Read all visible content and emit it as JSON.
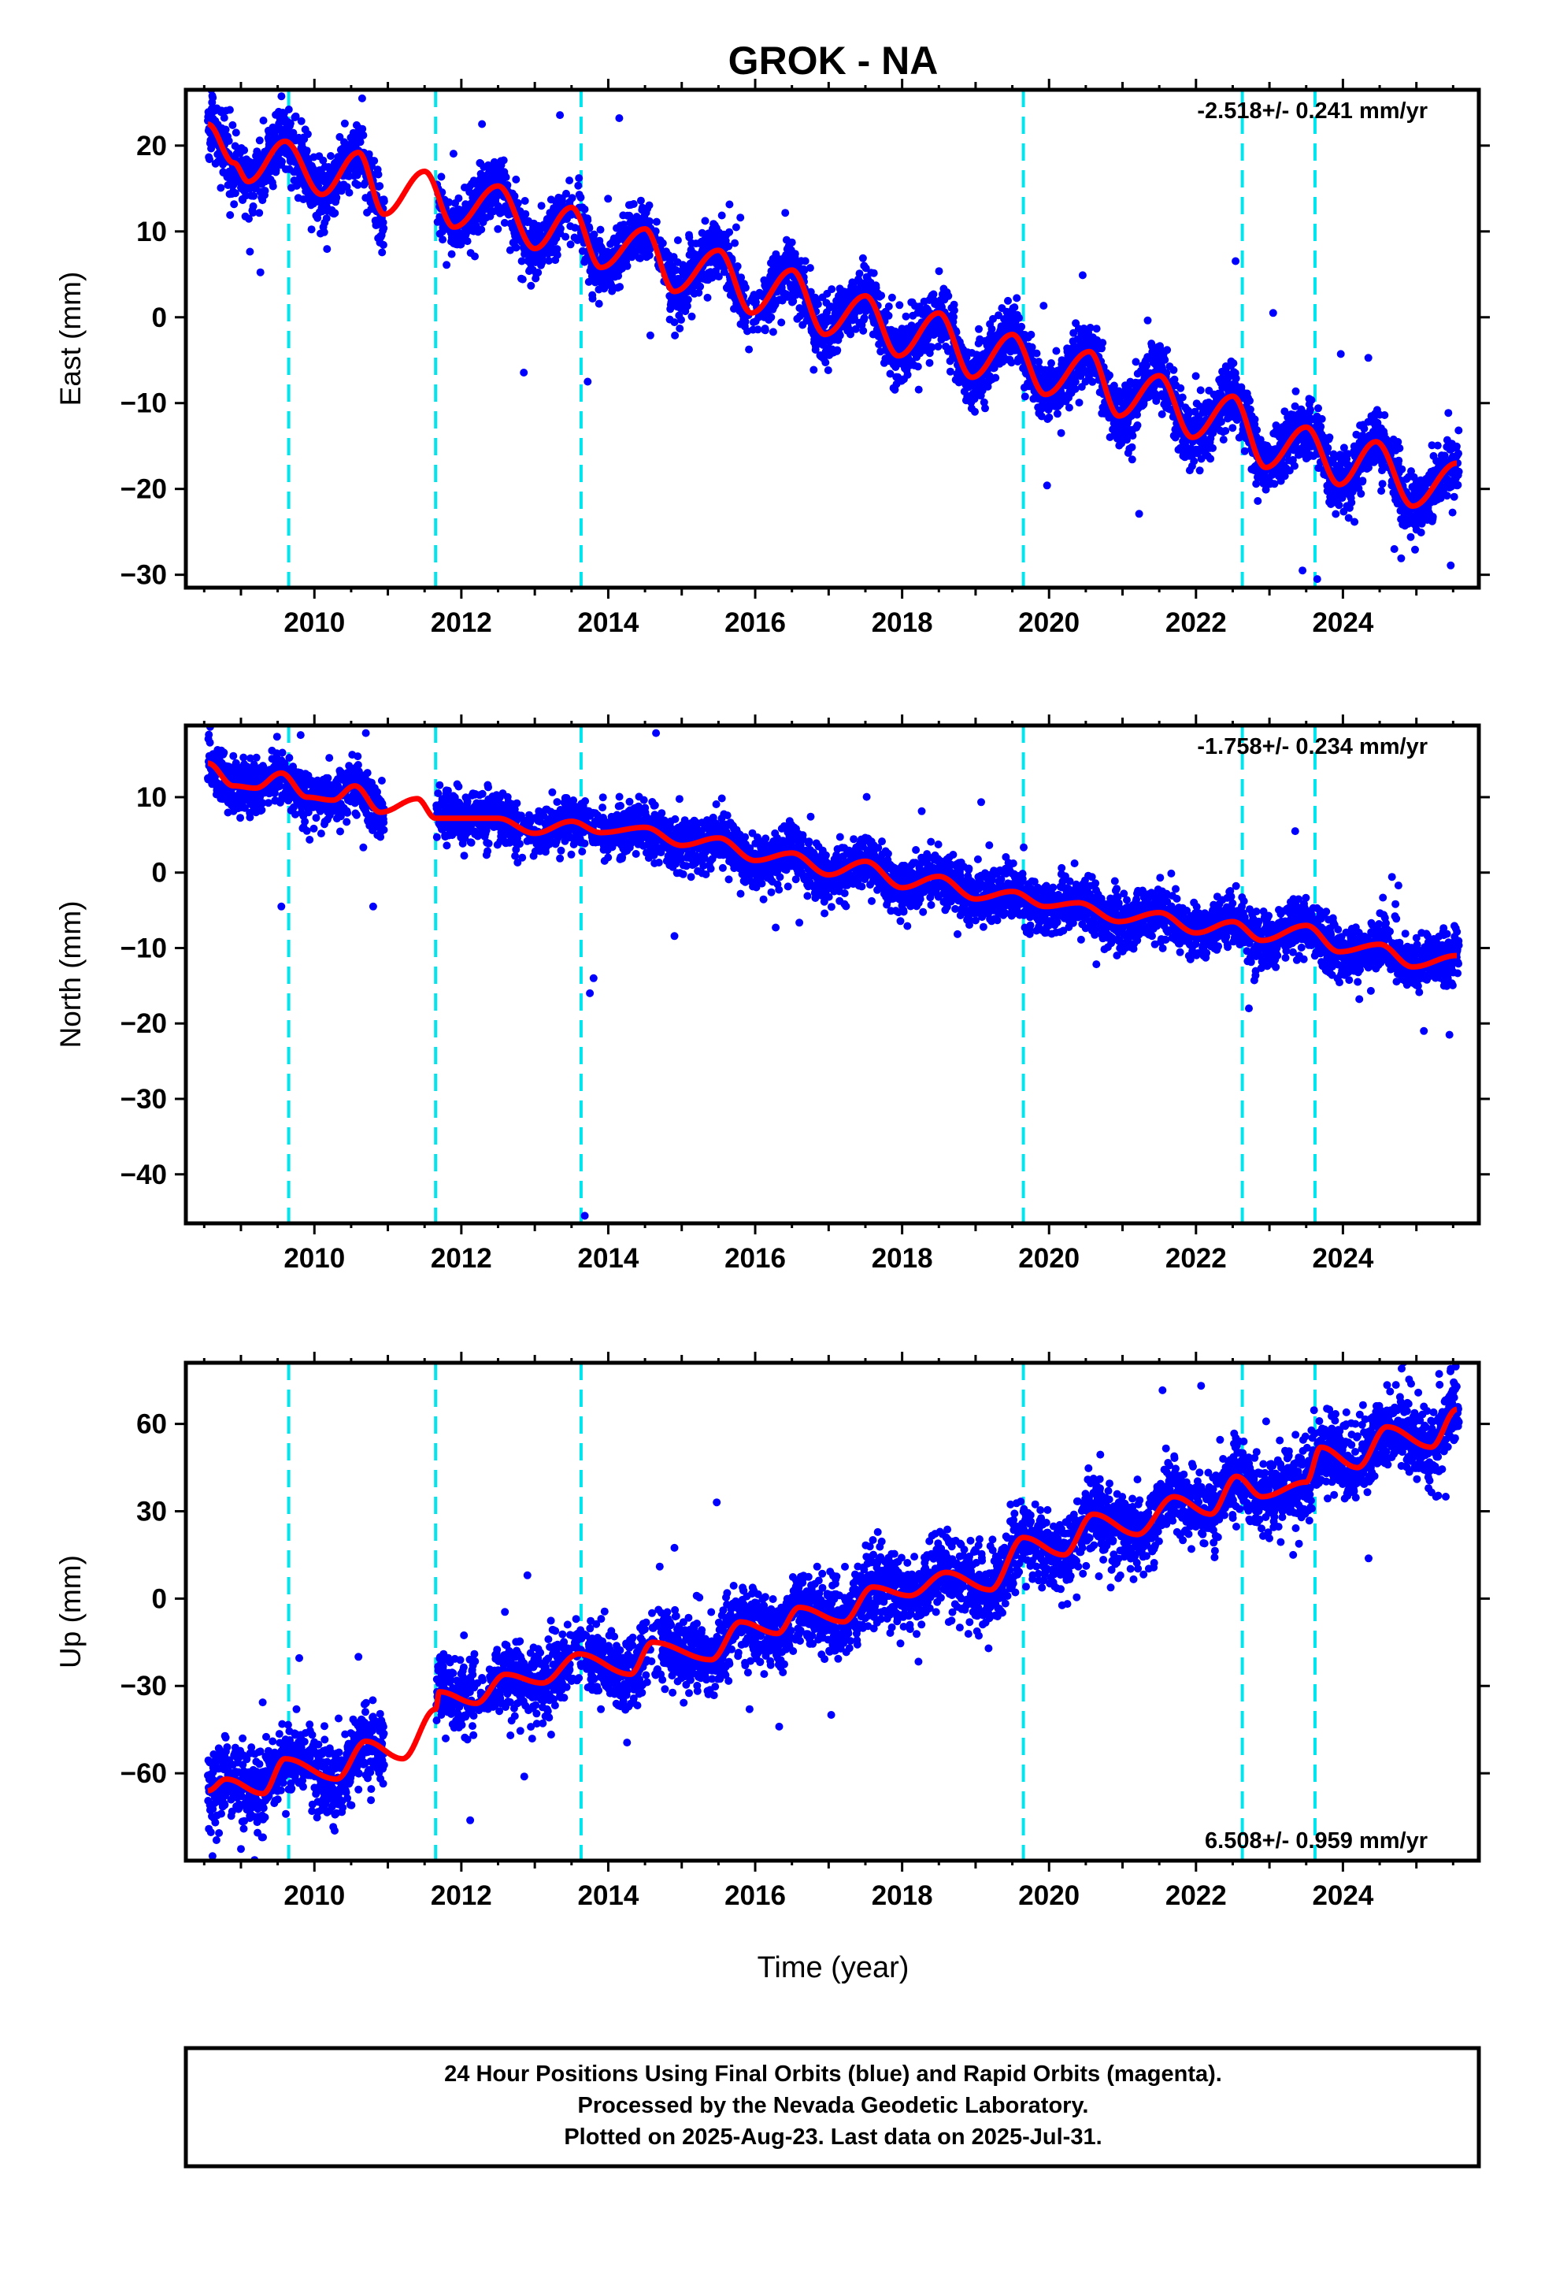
{
  "title": "GROK - NA",
  "xlabel": "Time (year)",
  "footer": {
    "line1": "24 Hour Positions Using Final Orbits (blue) and Rapid Orbits (magenta).",
    "line2": "Processed by the Nevada Geodetic Laboratory.",
    "line3": "Plotted on 2025-Aug-23. Last data on 2025-Jul-31."
  },
  "colors": {
    "points": "#0000ff",
    "fit": "#ff0000",
    "steps": "#00e5ee",
    "frame": "#000000"
  },
  "chart_data": [
    {
      "type": "scatter",
      "id": "east",
      "ylabel": "East (mm)",
      "rate_label": "-2.518+/- 0.241 mm/yr",
      "rate_position": "top-right",
      "xlim": [
        2008.25,
        2025.85
      ],
      "ylim": [
        -31.5,
        26.5
      ],
      "yticks": [
        -30,
        -20,
        -10,
        0,
        10,
        20
      ],
      "xticks": [
        2010,
        2012,
        2014,
        2016,
        2018,
        2020,
        2022,
        2024
      ],
      "step_epochs": [
        2009.65,
        2011.65,
        2013.63,
        2019.65,
        2022.63,
        2023.62
      ],
      "model": {
        "t0": 2008.55,
        "v0": 22.5,
        "rate": -2.518,
        "amp": 3.0,
        "phase": 0.55
      },
      "data_span": [
        2008.55,
        2025.58
      ],
      "data_gap": [
        2010.95,
        2011.66
      ],
      "scatter_sd": 1.8,
      "sparse_years": [
        2011.6,
        2013.5,
        2014.7,
        2016.0
      ],
      "outliers": [
        [
          2010.65,
          25.5
        ],
        [
          2014.15,
          23.2
        ],
        [
          2013.72,
          -7.5
        ],
        [
          2023.05,
          0.5
        ],
        [
          2023.45,
          -29.5
        ],
        [
          2023.65,
          -30.5
        ],
        [
          2024.7,
          -27
        ]
      ],
      "fit_points": [
        [
          2008.55,
          22.5
        ],
        [
          2008.9,
          18
        ],
        [
          2009.1,
          15.8
        ],
        [
          2009.6,
          20.5
        ],
        [
          2010.1,
          14.3
        ],
        [
          2010.6,
          19.2
        ],
        [
          2010.95,
          12
        ],
        [
          2011.5,
          17
        ],
        [
          2011.9,
          10.5
        ],
        [
          2012.5,
          15.3
        ],
        [
          2013.0,
          8
        ],
        [
          2013.5,
          12.8
        ],
        [
          2013.9,
          5.8
        ],
        [
          2014.5,
          10.3
        ],
        [
          2014.9,
          3
        ],
        [
          2015.5,
          7.8
        ],
        [
          2015.95,
          0.5
        ],
        [
          2016.5,
          5.5
        ],
        [
          2016.95,
          -2
        ],
        [
          2017.5,
          2.5
        ],
        [
          2017.95,
          -4.5
        ],
        [
          2018.5,
          0.5
        ],
        [
          2018.95,
          -7
        ],
        [
          2019.5,
          -2
        ],
        [
          2019.95,
          -9
        ],
        [
          2020.55,
          -4
        ],
        [
          2020.95,
          -11.5
        ],
        [
          2021.5,
          -6.8
        ],
        [
          2021.95,
          -14
        ],
        [
          2022.5,
          -9.2
        ],
        [
          2022.95,
          -17.5
        ],
        [
          2023.5,
          -12.8
        ],
        [
          2023.95,
          -19.5
        ],
        [
          2024.45,
          -14.5
        ],
        [
          2024.95,
          -22
        ],
        [
          2025.55,
          -17
        ]
      ]
    },
    {
      "type": "scatter",
      "id": "north",
      "ylabel": "North (mm)",
      "rate_label": "-1.758+/- 0.234 mm/yr",
      "rate_position": "top-right",
      "xlim": [
        2008.25,
        2025.85
      ],
      "ylim": [
        -46.5,
        19.5
      ],
      "yticks": [
        -40,
        -30,
        -20,
        -10,
        0,
        10
      ],
      "xticks": [
        2010,
        2012,
        2014,
        2016,
        2018,
        2020,
        2022,
        2024
      ],
      "step_epochs": [
        2009.65,
        2011.65,
        2013.63,
        2019.65,
        2022.63,
        2023.62
      ],
      "model": {
        "t0": 2008.55,
        "v0": 13.5,
        "rate": -1.758,
        "amp": 1.3,
        "phase": 0.4
      },
      "data_span": [
        2008.55,
        2025.58
      ],
      "data_gap": [
        2010.95,
        2011.66
      ],
      "scatter_sd": 1.7,
      "sparse_years": [
        2012.9,
        2013.8
      ],
      "outliers": [
        [
          2009.55,
          -4.5
        ],
        [
          2010.8,
          -4.5
        ],
        [
          2010.7,
          18.5
        ],
        [
          2014.65,
          18.5
        ],
        [
          2013.68,
          -45.5
        ],
        [
          2013.75,
          -16
        ],
        [
          2013.8,
          -14
        ],
        [
          2025.45,
          -21.5
        ],
        [
          2023.35,
          5.5
        ],
        [
          2022.72,
          -18
        ]
      ],
      "fit_points": [
        [
          2008.55,
          14.5
        ],
        [
          2008.9,
          11.5
        ],
        [
          2009.2,
          11.2
        ],
        [
          2009.55,
          13.2
        ],
        [
          2009.9,
          10
        ],
        [
          2010.25,
          9.6
        ],
        [
          2010.55,
          11.5
        ],
        [
          2010.9,
          8
        ],
        [
          2011.4,
          9.8
        ],
        [
          2011.65,
          7.2
        ],
        [
          2012.5,
          7.2
        ],
        [
          2013.0,
          5.2
        ],
        [
          2013.5,
          6.8
        ],
        [
          2013.9,
          5.3
        ],
        [
          2014.5,
          6
        ],
        [
          2015.0,
          3.6
        ],
        [
          2015.5,
          4.6
        ],
        [
          2016.0,
          1.6
        ],
        [
          2016.5,
          2.6
        ],
        [
          2017.0,
          -0.3
        ],
        [
          2017.5,
          1.5
        ],
        [
          2018.0,
          -2
        ],
        [
          2018.5,
          -0.5
        ],
        [
          2019.0,
          -3.5
        ],
        [
          2019.5,
          -2.5
        ],
        [
          2019.95,
          -4.5
        ],
        [
          2020.4,
          -4
        ],
        [
          2020.95,
          -6.5
        ],
        [
          2021.5,
          -5.3
        ],
        [
          2022.0,
          -8
        ],
        [
          2022.5,
          -6.5
        ],
        [
          2022.9,
          -9
        ],
        [
          2023.5,
          -7
        ],
        [
          2023.95,
          -10.5
        ],
        [
          2024.5,
          -9.5
        ],
        [
          2024.95,
          -12.5
        ],
        [
          2025.55,
          -11
        ]
      ]
    },
    {
      "type": "scatter",
      "id": "up",
      "ylabel": "Up (mm)",
      "rate_label": "6.508+/- 0.959 mm/yr",
      "rate_position": "bottom-right",
      "xlim": [
        2008.25,
        2025.85
      ],
      "ylim": [
        -90,
        81
      ],
      "yticks": [
        -60,
        -30,
        0,
        30,
        60
      ],
      "xticks": [
        2010,
        2012,
        2014,
        2016,
        2018,
        2020,
        2022,
        2024
      ],
      "step_epochs": [
        2009.65,
        2011.65,
        2013.63,
        2019.65,
        2022.63,
        2023.62
      ],
      "model": {
        "t0": 2008.55,
        "v0": -65,
        "rate": 6.508,
        "amp": 5.0,
        "phase": 0.6
      },
      "data_span": [
        2008.55,
        2025.58
      ],
      "data_gap": [
        2010.95,
        2011.66
      ],
      "scatter_sd": 6.5,
      "sparse_years": [
        2012.3,
        2013.6,
        2014.6
      ],
      "outliers": [
        [
          2009.0,
          -86
        ],
        [
          2009.3,
          -82
        ],
        [
          2010.6,
          -20
        ],
        [
          2012.9,
          8
        ],
        [
          2014.7,
          11
        ],
        [
          2024.8,
          79
        ],
        [
          2025.4,
          35
        ],
        [
          2013.9,
          -38
        ]
      ],
      "fit_points": [
        [
          2008.55,
          -66
        ],
        [
          2008.8,
          -62
        ],
        [
          2009.3,
          -67
        ],
        [
          2009.6,
          -55
        ],
        [
          2010.3,
          -62
        ],
        [
          2010.7,
          -49
        ],
        [
          2011.2,
          -55
        ],
        [
          2011.65,
          -38
        ],
        [
          2011.7,
          -32
        ],
        [
          2012.2,
          -36
        ],
        [
          2012.6,
          -26
        ],
        [
          2013.1,
          -29
        ],
        [
          2013.6,
          -19
        ],
        [
          2014.3,
          -26
        ],
        [
          2014.6,
          -15
        ],
        [
          2015.4,
          -21
        ],
        [
          2015.8,
          -8
        ],
        [
          2016.3,
          -12
        ],
        [
          2016.6,
          -3
        ],
        [
          2017.2,
          -8
        ],
        [
          2017.6,
          4
        ],
        [
          2018.1,
          1
        ],
        [
          2018.6,
          9
        ],
        [
          2019.2,
          3
        ],
        [
          2019.65,
          21
        ],
        [
          2020.2,
          15
        ],
        [
          2020.6,
          29
        ],
        [
          2021.2,
          22
        ],
        [
          2021.7,
          35
        ],
        [
          2022.2,
          29
        ],
        [
          2022.55,
          42
        ],
        [
          2022.9,
          35
        ],
        [
          2023.5,
          40
        ],
        [
          2023.7,
          52
        ],
        [
          2024.2,
          45
        ],
        [
          2024.6,
          59
        ],
        [
          2025.2,
          52
        ],
        [
          2025.55,
          65
        ]
      ]
    }
  ]
}
